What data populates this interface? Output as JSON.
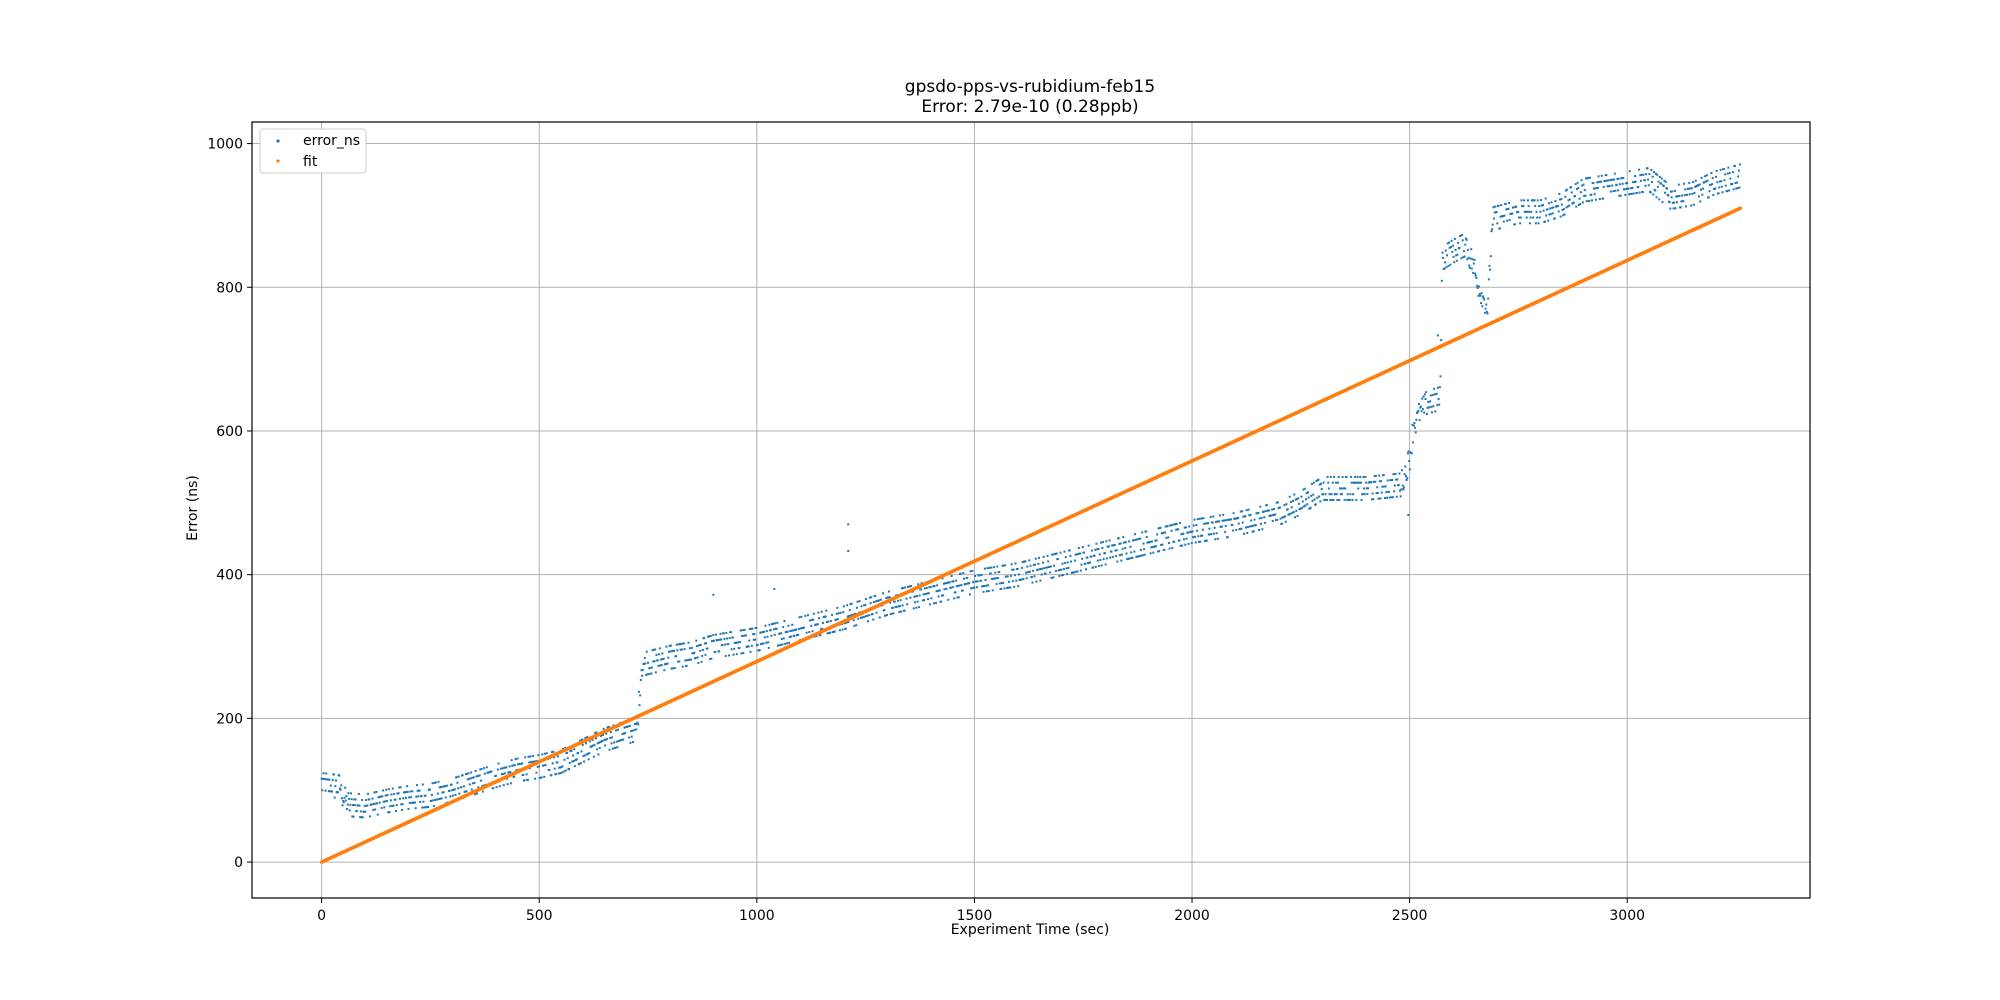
{
  "chart_data": {
    "type": "scatter",
    "title": "gpsdo-pps-vs-rubidium-feb15",
    "subtitle": "Error: 2.79e-10 (0.28ppb)",
    "xlabel": "Experiment Time (sec)",
    "ylabel": "Error (ns)",
    "xlim": [
      -160,
      3420
    ],
    "ylim": [
      -50,
      1030
    ],
    "xticks": [
      0,
      500,
      1000,
      1500,
      2000,
      2500,
      3000
    ],
    "yticks": [
      0,
      200,
      400,
      600,
      800,
      1000
    ],
    "grid": true,
    "legend_position": "top-left",
    "series": [
      {
        "name": "error_ns",
        "color": "#1f77b4",
        "marker": "point",
        "trend_points": [
          [
            0,
            108
          ],
          [
            40,
            105
          ],
          [
            60,
            80
          ],
          [
            100,
            78
          ],
          [
            150,
            85
          ],
          [
            200,
            90
          ],
          [
            250,
            93
          ],
          [
            300,
            100
          ],
          [
            350,
            110
          ],
          [
            400,
            120
          ],
          [
            450,
            128
          ],
          [
            500,
            133
          ],
          [
            550,
            140
          ],
          [
            600,
            155
          ],
          [
            650,
            170
          ],
          [
            700,
            180
          ],
          [
            725,
            185
          ],
          [
            735,
            275
          ],
          [
            800,
            285
          ],
          [
            850,
            290
          ],
          [
            900,
            300
          ],
          [
            1000,
            310
          ],
          [
            1100,
            325
          ],
          [
            1200,
            340
          ],
          [
            1300,
            360
          ],
          [
            1400,
            375
          ],
          [
            1500,
            390
          ],
          [
            1600,
            400
          ],
          [
            1700,
            415
          ],
          [
            1800,
            430
          ],
          [
            1900,
            445
          ],
          [
            2000,
            460
          ],
          [
            2100,
            470
          ],
          [
            2200,
            485
          ],
          [
            2250,
            500
          ],
          [
            2300,
            520
          ],
          [
            2400,
            520
          ],
          [
            2480,
            525
          ],
          [
            2500,
            560
          ],
          [
            2510,
            610
          ],
          [
            2540,
            640
          ],
          [
            2570,
            645
          ],
          [
            2575,
            840
          ],
          [
            2600,
            850
          ],
          [
            2630,
            860
          ],
          [
            2660,
            800
          ],
          [
            2680,
            770
          ],
          [
            2690,
            895
          ],
          [
            2750,
            905
          ],
          [
            2800,
            905
          ],
          [
            2850,
            915
          ],
          [
            2900,
            935
          ],
          [
            3000,
            945
          ],
          [
            3050,
            950
          ],
          [
            3100,
            925
          ],
          [
            3150,
            930
          ],
          [
            3200,
            945
          ],
          [
            3260,
            955
          ]
        ],
        "noise_ns": 18,
        "outliers": [
          [
            900,
            372
          ],
          [
            1210,
            470
          ],
          [
            1210,
            433
          ],
          [
            1040,
            380
          ],
          [
            2565,
            733
          ],
          [
            2497,
            483
          ]
        ]
      },
      {
        "name": "fit",
        "color": "#ff7f0e",
        "marker": "point",
        "x": [
          0,
          3260
        ],
        "y": [
          0,
          910
        ]
      }
    ]
  }
}
